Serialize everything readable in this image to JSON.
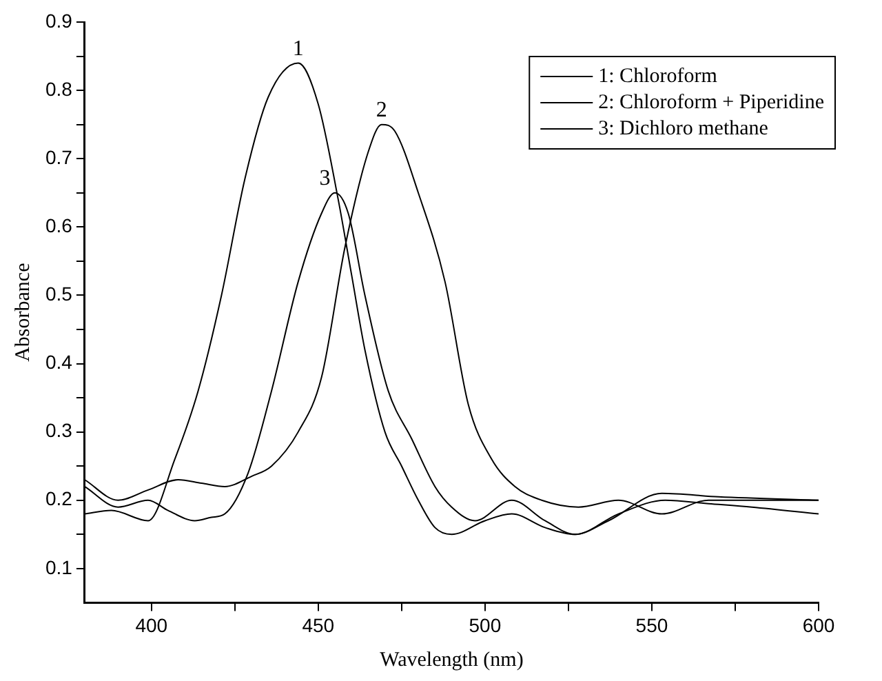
{
  "chart_data": {
    "type": "line",
    "xlabel": "Wavelength (nm)",
    "ylabel": "Absorbance",
    "xlim": [
      380,
      600
    ],
    "xticks": [
      400,
      {
        "value": 425,
        "label": null
      },
      450,
      {
        "value": 475,
        "label": null
      },
      500,
      {
        "value": 525,
        "label": null
      },
      550,
      {
        "value": 575,
        "label": null
      },
      600
    ],
    "ylim": [
      0.05,
      0.9
    ],
    "yticks": [
      0.1,
      {
        "value": 0.15,
        "label": null
      },
      0.2,
      {
        "value": 0.25,
        "label": null
      },
      0.3,
      {
        "value": 0.35,
        "label": null
      },
      0.4,
      {
        "value": 0.45,
        "label": null
      },
      0.5,
      {
        "value": 0.55,
        "label": null
      },
      0.6,
      {
        "value": 0.65,
        "label": null
      },
      0.7,
      {
        "value": 0.75,
        "label": null
      },
      0.8,
      {
        "value": 0.85,
        "label": null
      },
      0.9
    ],
    "grid": false,
    "legend": "top right",
    "marker": "none",
    "line_style": "solid",
    "annotations": [
      {
        "text": "1",
        "x": 444,
        "y": 0.84
      },
      {
        "text": "2",
        "x": 469,
        "y": 0.75
      },
      {
        "text": "3",
        "x": 452,
        "y": 0.65
      }
    ],
    "series": [
      {
        "name": "1: Chloroform",
        "color": "#000000",
        "x": [
          380,
          388,
          399,
          407,
          414,
          421,
          428,
          435,
          444,
          450,
          456,
          460,
          464,
          470,
          475,
          480,
          485,
          490,
          500,
          508,
          518,
          527,
          540,
          554,
          567,
          580,
          600
        ],
        "values": [
          0.18,
          0.185,
          0.17,
          0.26,
          0.36,
          0.5,
          0.67,
          0.79,
          0.84,
          0.78,
          0.64,
          0.53,
          0.42,
          0.3,
          0.25,
          0.2,
          0.16,
          0.15,
          0.17,
          0.18,
          0.16,
          0.15,
          0.18,
          0.2,
          0.195,
          0.19,
          0.18
        ]
      },
      {
        "name": "2: Chloroform + Piperidine",
        "color": "#000000",
        "x": [
          380,
          390,
          399,
          408,
          415,
          422,
          430,
          436,
          444,
          451,
          458,
          465,
          469,
          473,
          480,
          488,
          495,
          502,
          509,
          517,
          528,
          540,
          553,
          567,
          580,
          600
        ],
        "values": [
          0.23,
          0.2,
          0.215,
          0.23,
          0.225,
          0.22,
          0.235,
          0.25,
          0.3,
          0.38,
          0.57,
          0.71,
          0.75,
          0.74,
          0.65,
          0.52,
          0.34,
          0.26,
          0.22,
          0.2,
          0.19,
          0.2,
          0.18,
          0.2,
          0.2,
          0.2
        ]
      },
      {
        "name": "3: Dichloro methane",
        "color": "#000000",
        "x": [
          380,
          390,
          399,
          405,
          413,
          418,
          422,
          429,
          436,
          444,
          451,
          455,
          459,
          464,
          471,
          478,
          485,
          490,
          497,
          508,
          518,
          527,
          537,
          553,
          570,
          600
        ],
        "values": [
          0.22,
          0.19,
          0.2,
          0.185,
          0.17,
          0.175,
          0.18,
          0.24,
          0.36,
          0.52,
          0.62,
          0.65,
          0.62,
          0.5,
          0.36,
          0.29,
          0.22,
          0.19,
          0.17,
          0.2,
          0.17,
          0.15,
          0.17,
          0.21,
          0.205,
          0.2
        ]
      }
    ]
  }
}
